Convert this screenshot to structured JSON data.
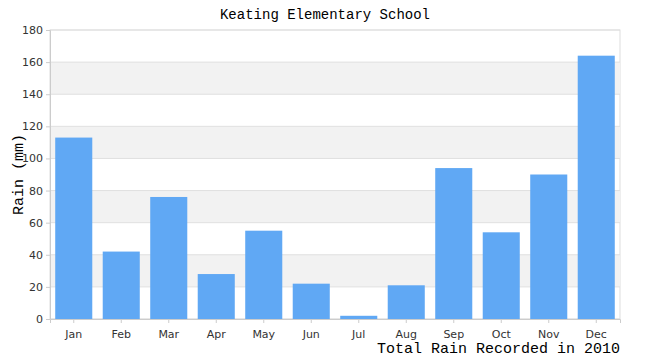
{
  "chart_data": {
    "type": "bar",
    "title": "Keating Elementary School",
    "x_label": "Total Rain Recorded in 2010",
    "y_label": "Rain (mm)",
    "categories": [
      "Jan",
      "Feb",
      "Mar",
      "Apr",
      "May",
      "Jun",
      "Jul",
      "Aug",
      "Sep",
      "Oct",
      "Nov",
      "Dec"
    ],
    "values": [
      113,
      42,
      76,
      28,
      55,
      22,
      2,
      21,
      94,
      54,
      90,
      164
    ],
    "color": "#60a8f4",
    "ylim": [
      0,
      180
    ],
    "yticks": [
      0,
      20,
      40,
      60,
      80,
      100,
      120,
      140,
      160,
      180
    ],
    "grid": true
  }
}
